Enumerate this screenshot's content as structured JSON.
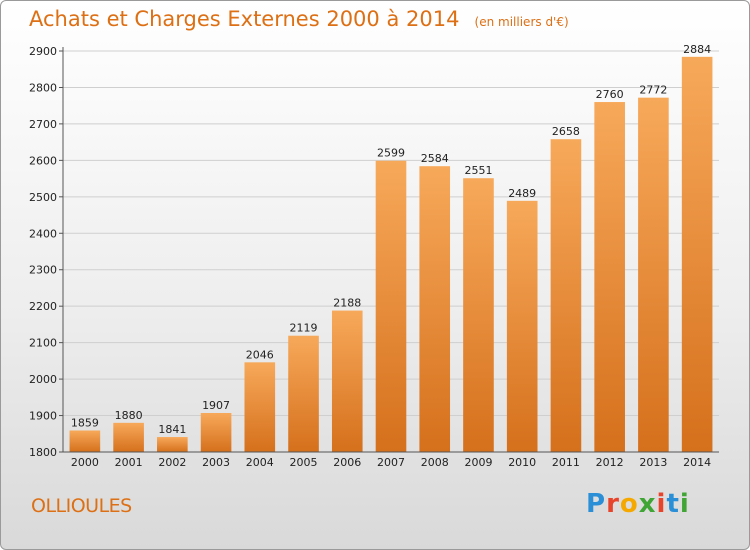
{
  "header": {
    "title": "Achats et Charges Externes 2000 à 2014",
    "subtitle": "(en milliers d'€)"
  },
  "location": {
    "name": "OLLIOULES"
  },
  "brand": {
    "name": "Proxiti",
    "letters": [
      "P",
      "r",
      "o",
      "x",
      "i",
      "t",
      "i"
    ],
    "letter_colors": [
      "#2a8fd6",
      "#e8442b",
      "#f5a800",
      "#3fa535",
      "#e8442b",
      "#2a8fd6",
      "#3fa535"
    ]
  },
  "colors": {
    "bar_top": "#f7a95a",
    "bar_bottom": "#d5701c",
    "grid": "#cfcfcf",
    "axis": "#555555",
    "title": "#dd6f14"
  },
  "chart_data": {
    "type": "bar",
    "title": "Achats et Charges Externes 2000 à 2014",
    "subtitle": "(en milliers d'€)",
    "categories": [
      "2000",
      "2001",
      "2002",
      "2003",
      "2004",
      "2005",
      "2006",
      "2007",
      "2008",
      "2009",
      "2010",
      "2011",
      "2012",
      "2013",
      "2014"
    ],
    "values": [
      1859,
      1880,
      1841,
      1907,
      2046,
      2119,
      2188,
      2599,
      2584,
      2551,
      2489,
      2658,
      2760,
      2772,
      2884
    ],
    "ylim": [
      1800,
      2900
    ],
    "yticks": [
      1800,
      1900,
      2000,
      2100,
      2200,
      2300,
      2400,
      2500,
      2600,
      2700,
      2800,
      2900
    ],
    "grid": true,
    "data_labels": true
  }
}
